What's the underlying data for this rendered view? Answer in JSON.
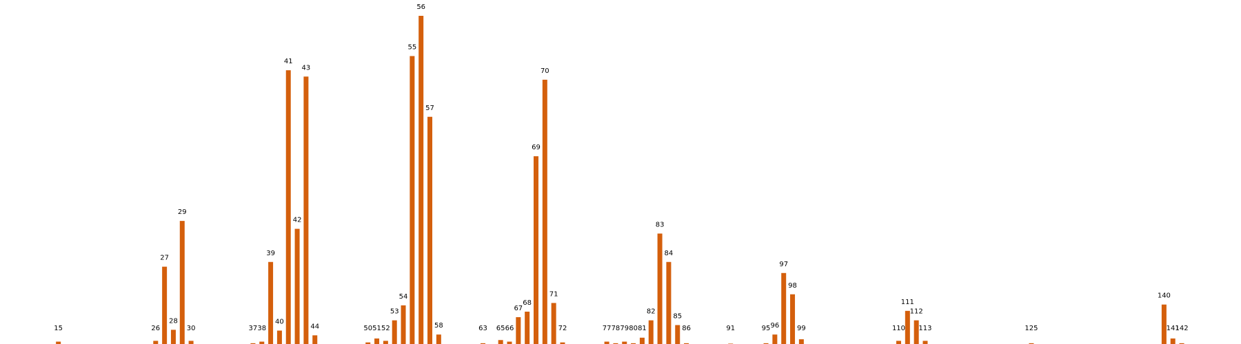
{
  "chart_data": {
    "type": "bar",
    "color": "#d45f0c",
    "x": [
      15,
      26,
      27,
      28,
      29,
      30,
      37,
      38,
      39,
      40,
      41,
      42,
      43,
      44,
      50,
      51,
      52,
      53,
      54,
      55,
      56,
      57,
      58,
      63,
      65,
      66,
      67,
      68,
      69,
      70,
      71,
      72,
      77,
      78,
      79,
      80,
      81,
      82,
      83,
      84,
      85,
      86,
      91,
      95,
      96,
      97,
      98,
      99,
      110,
      111,
      112,
      113,
      125,
      140,
      141,
      142
    ],
    "values": [
      3,
      4,
      98,
      18,
      156,
      4,
      1,
      3,
      104,
      17,
      347,
      146,
      339,
      11,
      2,
      7,
      4,
      30,
      49,
      365,
      416,
      288,
      12,
      1,
      5,
      3,
      34,
      41,
      238,
      335,
      52,
      2,
      3,
      1,
      3,
      1,
      8,
      30,
      140,
      104,
      24,
      1,
      0.5,
      1,
      12,
      90,
      63,
      6,
      4,
      42,
      30,
      4,
      1,
      50,
      7,
      1
    ],
    "xlim": [
      8.4,
      148.7
    ],
    "ylim": [
      0,
      416
    ]
  }
}
